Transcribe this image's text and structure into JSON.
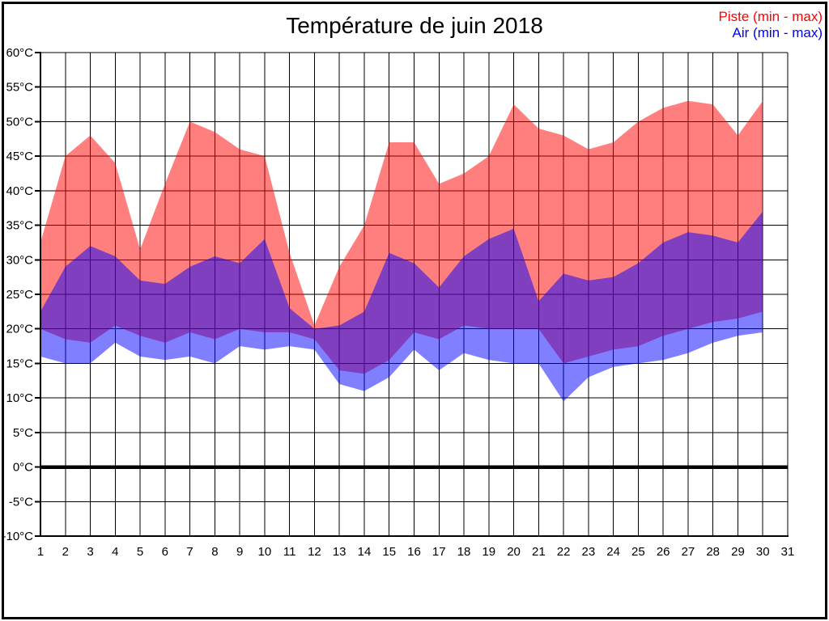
{
  "title": "Température de juin 2018",
  "legend": [
    {
      "label": "Piste (min - max)",
      "color": "#ff0000"
    },
    {
      "label": "Air (min - max)",
      "color": "#0000ff"
    }
  ],
  "chart_data": {
    "type": "area",
    "title": "Température de juin 2018",
    "xlabel": "",
    "ylabel": "",
    "x": [
      1,
      2,
      3,
      4,
      5,
      6,
      7,
      8,
      9,
      10,
      11,
      12,
      13,
      14,
      15,
      16,
      17,
      18,
      19,
      20,
      21,
      22,
      23,
      24,
      25,
      26,
      27,
      28,
      29,
      30
    ],
    "x_ticks": [
      1,
      2,
      3,
      4,
      5,
      6,
      7,
      8,
      9,
      10,
      11,
      12,
      13,
      14,
      15,
      16,
      17,
      18,
      19,
      20,
      21,
      22,
      23,
      24,
      25,
      26,
      27,
      28,
      29,
      30,
      31
    ],
    "y_ticks": [
      60,
      55,
      50,
      45,
      40,
      35,
      30,
      25,
      20,
      15,
      10,
      5,
      0,
      -5,
      -10
    ],
    "y_unit": "°C",
    "xlim": [
      1,
      31
    ],
    "ylim": [
      -10,
      60
    ],
    "grid": true,
    "grid_color": "#000000",
    "zero_line_value": 0,
    "background": "#ffffff",
    "legend_position": "top-right",
    "series": [
      {
        "name": "Piste (min - max)",
        "color": "#ff0000",
        "fill_opacity": 0.5,
        "max": [
          32.5,
          45,
          48,
          44,
          31.5,
          41,
          50,
          48.5,
          46,
          45,
          31,
          20.5,
          29,
          35,
          47,
          47,
          41,
          42.5,
          45,
          52.5,
          49,
          48,
          46,
          47,
          50,
          52,
          53,
          52.5,
          48,
          53
        ],
        "min": [
          20,
          18.5,
          18,
          20.5,
          19,
          18,
          19.5,
          18.5,
          20,
          19.5,
          19.5,
          18.5,
          14,
          13.5,
          15.5,
          19.5,
          18.5,
          20.5,
          20,
          20,
          20,
          15,
          16,
          17,
          17.5,
          19,
          20,
          21,
          21.5,
          22.5
        ]
      },
      {
        "name": "Air (min - max)",
        "color": "#0000ff",
        "fill_opacity": 0.5,
        "max": [
          22.5,
          29,
          32,
          30.5,
          27,
          26.5,
          29,
          30.5,
          29.5,
          33,
          23,
          20,
          20.5,
          22.5,
          31,
          29.5,
          26,
          30.5,
          33,
          34.5,
          24,
          28,
          27,
          27.5,
          29.5,
          32.5,
          34,
          33.5,
          32.5,
          37
        ],
        "min": [
          16,
          15,
          15,
          18,
          16,
          15.5,
          16,
          15,
          17.5,
          17,
          17.5,
          17,
          12,
          11,
          13,
          17,
          14,
          16.5,
          15.5,
          15,
          15,
          9.5,
          13,
          14.5,
          15,
          15.5,
          16.5,
          18,
          19,
          19.5
        ]
      }
    ]
  }
}
